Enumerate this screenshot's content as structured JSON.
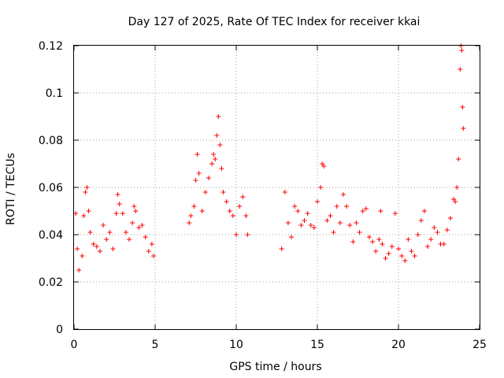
{
  "chart_data": {
    "type": "scatter",
    "title": "Day 127 of 2025, Rate Of TEC Index for receiver kkai",
    "xlabel": "GPS time / hours",
    "ylabel": "ROTI / TECUs",
    "xlim": [
      0,
      25
    ],
    "ylim": [
      0,
      0.12
    ],
    "xticks": [
      0,
      5,
      10,
      15,
      20,
      25
    ],
    "yticks": [
      0,
      0.02,
      0.04,
      0.06,
      0.08,
      0.1,
      0.12
    ],
    "xtick_labels": [
      "0",
      "5",
      "10",
      "15",
      "20",
      "25"
    ],
    "ytick_labels": [
      "0",
      "0.02",
      "0.04",
      "0.06",
      "0.08",
      "0.1",
      "0.12"
    ],
    "grid": true,
    "marker": "+",
    "color": "#ff0000",
    "series": [
      {
        "points": [
          [
            0.1,
            0.049
          ],
          [
            0.2,
            0.034
          ],
          [
            0.3,
            0.025
          ],
          [
            0.5,
            0.031
          ],
          [
            0.6,
            0.048
          ],
          [
            0.7,
            0.058
          ],
          [
            0.8,
            0.06
          ],
          [
            0.9,
            0.05
          ],
          [
            1.0,
            0.041
          ],
          [
            1.2,
            0.036
          ],
          [
            1.4,
            0.035
          ],
          [
            1.6,
            0.033
          ],
          [
            1.8,
            0.044
          ],
          [
            2.0,
            0.038
          ],
          [
            2.2,
            0.041
          ],
          [
            2.4,
            0.034
          ],
          [
            2.6,
            0.049
          ],
          [
            2.7,
            0.057
          ],
          [
            2.8,
            0.053
          ],
          [
            3.0,
            0.049
          ],
          [
            3.2,
            0.041
          ],
          [
            3.4,
            0.038
          ],
          [
            3.6,
            0.045
          ],
          [
            3.7,
            0.052
          ],
          [
            3.8,
            0.05
          ],
          [
            4.0,
            0.043
          ],
          [
            4.2,
            0.044
          ],
          [
            4.4,
            0.039
          ],
          [
            4.6,
            0.033
          ],
          [
            4.8,
            0.036
          ],
          [
            4.9,
            0.031
          ],
          [
            7.1,
            0.045
          ],
          [
            7.2,
            0.048
          ],
          [
            7.4,
            0.052
          ],
          [
            7.5,
            0.063
          ],
          [
            7.6,
            0.074
          ],
          [
            7.7,
            0.066
          ],
          [
            7.9,
            0.05
          ],
          [
            8.1,
            0.058
          ],
          [
            8.3,
            0.064
          ],
          [
            8.5,
            0.07
          ],
          [
            8.6,
            0.074
          ],
          [
            8.7,
            0.072
          ],
          [
            8.8,
            0.082
          ],
          [
            8.9,
            0.09
          ],
          [
            9.0,
            0.078
          ],
          [
            9.1,
            0.068
          ],
          [
            9.2,
            0.058
          ],
          [
            9.4,
            0.054
          ],
          [
            9.6,
            0.05
          ],
          [
            9.8,
            0.048
          ],
          [
            10.0,
            0.04
          ],
          [
            10.2,
            0.052
          ],
          [
            10.4,
            0.056
          ],
          [
            10.6,
            0.048
          ],
          [
            10.7,
            0.04
          ],
          [
            12.8,
            0.034
          ],
          [
            13.0,
            0.058
          ],
          [
            13.2,
            0.045
          ],
          [
            13.4,
            0.039
          ],
          [
            13.6,
            0.052
          ],
          [
            13.8,
            0.05
          ],
          [
            14.0,
            0.044
          ],
          [
            14.2,
            0.046
          ],
          [
            14.4,
            0.049
          ],
          [
            14.6,
            0.044
          ],
          [
            14.8,
            0.043
          ],
          [
            15.0,
            0.054
          ],
          [
            15.2,
            0.06
          ],
          [
            15.3,
            0.07
          ],
          [
            15.4,
            0.069
          ],
          [
            15.6,
            0.046
          ],
          [
            15.8,
            0.048
          ],
          [
            16.0,
            0.041
          ],
          [
            16.2,
            0.052
          ],
          [
            16.4,
            0.045
          ],
          [
            16.6,
            0.057
          ],
          [
            16.8,
            0.052
          ],
          [
            17.0,
            0.044
          ],
          [
            17.2,
            0.037
          ],
          [
            17.4,
            0.045
          ],
          [
            17.6,
            0.041
          ],
          [
            17.8,
            0.05
          ],
          [
            18.0,
            0.051
          ],
          [
            18.2,
            0.039
          ],
          [
            18.4,
            0.037
          ],
          [
            18.6,
            0.033
          ],
          [
            18.8,
            0.038
          ],
          [
            18.9,
            0.05
          ],
          [
            19.0,
            0.036
          ],
          [
            19.2,
            0.03
          ],
          [
            19.4,
            0.032
          ],
          [
            19.6,
            0.035
          ],
          [
            19.8,
            0.049
          ],
          [
            20.0,
            0.034
          ],
          [
            20.2,
            0.031
          ],
          [
            20.4,
            0.029
          ],
          [
            20.6,
            0.038
          ],
          [
            20.8,
            0.033
          ],
          [
            21.0,
            0.031
          ],
          [
            21.2,
            0.04
          ],
          [
            21.4,
            0.046
          ],
          [
            21.6,
            0.05
          ],
          [
            21.8,
            0.035
          ],
          [
            22.0,
            0.038
          ],
          [
            22.2,
            0.043
          ],
          [
            22.4,
            0.041
          ],
          [
            22.6,
            0.036
          ],
          [
            22.8,
            0.036
          ],
          [
            23.0,
            0.042
          ],
          [
            23.2,
            0.047
          ],
          [
            23.4,
            0.055
          ],
          [
            23.5,
            0.054
          ],
          [
            23.6,
            0.06
          ],
          [
            23.7,
            0.072
          ],
          [
            23.8,
            0.11
          ],
          [
            23.85,
            0.12
          ],
          [
            23.9,
            0.118
          ],
          [
            23.95,
            0.094
          ],
          [
            24.0,
            0.085
          ]
        ]
      }
    ]
  }
}
